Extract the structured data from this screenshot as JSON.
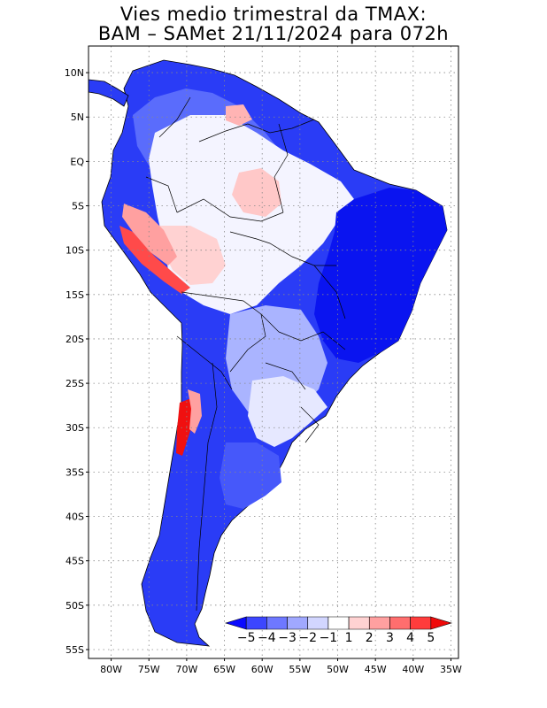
{
  "title_line1": "Vies medio trimestral da TMAX:",
  "title_line2": "BAM – SAMet 21/11/2024  para 072h",
  "lat_ticks": [
    {
      "label": "10N",
      "lat": 10
    },
    {
      "label": "5N",
      "lat": 5
    },
    {
      "label": "EQ",
      "lat": 0
    },
    {
      "label": "5S",
      "lat": -5
    },
    {
      "label": "10S",
      "lat": -10
    },
    {
      "label": "15S",
      "lat": -15
    },
    {
      "label": "20S",
      "lat": -20
    },
    {
      "label": "25S",
      "lat": -25
    },
    {
      "label": "30S",
      "lat": -30
    },
    {
      "label": "35S",
      "lat": -35
    },
    {
      "label": "40S",
      "lat": -40
    },
    {
      "label": "45S",
      "lat": -45
    },
    {
      "label": "50S",
      "lat": -50
    },
    {
      "label": "55S",
      "lat": -55
    }
  ],
  "lon_ticks": [
    {
      "label": "80W",
      "lon": -80
    },
    {
      "label": "75W",
      "lon": -75
    },
    {
      "label": "70W",
      "lon": -70
    },
    {
      "label": "65W",
      "lon": -65
    },
    {
      "label": "60W",
      "lon": -60
    },
    {
      "label": "55W",
      "lon": -55
    },
    {
      "label": "50W",
      "lon": -50
    },
    {
      "label": "45W",
      "lon": -45
    },
    {
      "label": "40W",
      "lon": -40
    },
    {
      "label": "35W",
      "lon": -35
    }
  ],
  "extent": {
    "lon_min": -83,
    "lon_max": -34,
    "lat_min": -56,
    "lat_max": 13
  },
  "colorbar": {
    "labels": [
      "−5",
      "−4",
      "−3",
      "−2",
      "−1",
      "1",
      "2",
      "3",
      "4",
      "5"
    ],
    "colors": [
      "#0a0aff",
      "#3c46ff",
      "#6e78ff",
      "#a0a8ff",
      "#d2d6ff",
      "#ffffff",
      "#ffd2d2",
      "#ffa0a0",
      "#ff6e6e",
      "#ff3c3c",
      "#f00a0a"
    ]
  },
  "colors": {
    "strong_blue": "#1428f0",
    "mid_blue": "#5a6eff",
    "light_blue": "#b4bcff",
    "pale": "#e8eaff",
    "light_red": "#ffc8c8",
    "red": "#ff3030"
  }
}
